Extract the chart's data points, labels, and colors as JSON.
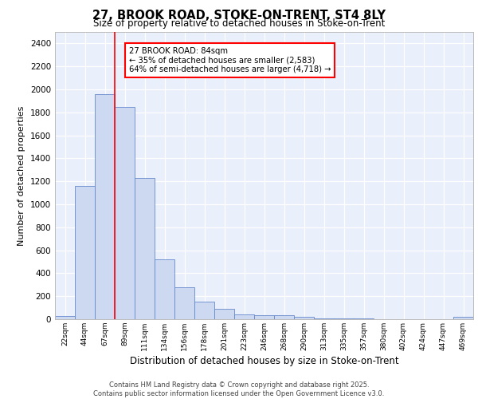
{
  "title_line1": "27, BROOK ROAD, STOKE-ON-TRENT, ST4 8LY",
  "title_line2": "Size of property relative to detached houses in Stoke-on-Trent",
  "xlabel": "Distribution of detached houses by size in Stoke-on-Trent",
  "ylabel": "Number of detached properties",
  "bin_labels": [
    "22sqm",
    "44sqm",
    "67sqm",
    "89sqm",
    "111sqm",
    "134sqm",
    "156sqm",
    "178sqm",
    "201sqm",
    "223sqm",
    "246sqm",
    "268sqm",
    "290sqm",
    "313sqm",
    "335sqm",
    "357sqm",
    "380sqm",
    "402sqm",
    "424sqm",
    "447sqm",
    "469sqm"
  ],
  "bar_heights": [
    25,
    1160,
    1960,
    1850,
    1230,
    520,
    275,
    155,
    90,
    45,
    38,
    38,
    20,
    10,
    8,
    5,
    3,
    2,
    1,
    1,
    18
  ],
  "bar_color": "#ccd9f0",
  "bar_edge_color": "#6688cc",
  "vline_x_idx": 2.5,
  "annotation_text": "27 BROOK ROAD: 84sqm\n← 35% of detached houses are smaller (2,583)\n64% of semi-detached houses are larger (4,718) →",
  "annotation_box_color": "white",
  "annotation_box_edge": "red",
  "ylim": [
    0,
    2500
  ],
  "yticks": [
    0,
    200,
    400,
    600,
    800,
    1000,
    1200,
    1400,
    1600,
    1800,
    2000,
    2200,
    2400
  ],
  "bg_color": "#eaf0fb",
  "grid_color": "white",
  "footer_line1": "Contains HM Land Registry data © Crown copyright and database right 2025.",
  "footer_line2": "Contains public sector information licensed under the Open Government Licence v3.0."
}
